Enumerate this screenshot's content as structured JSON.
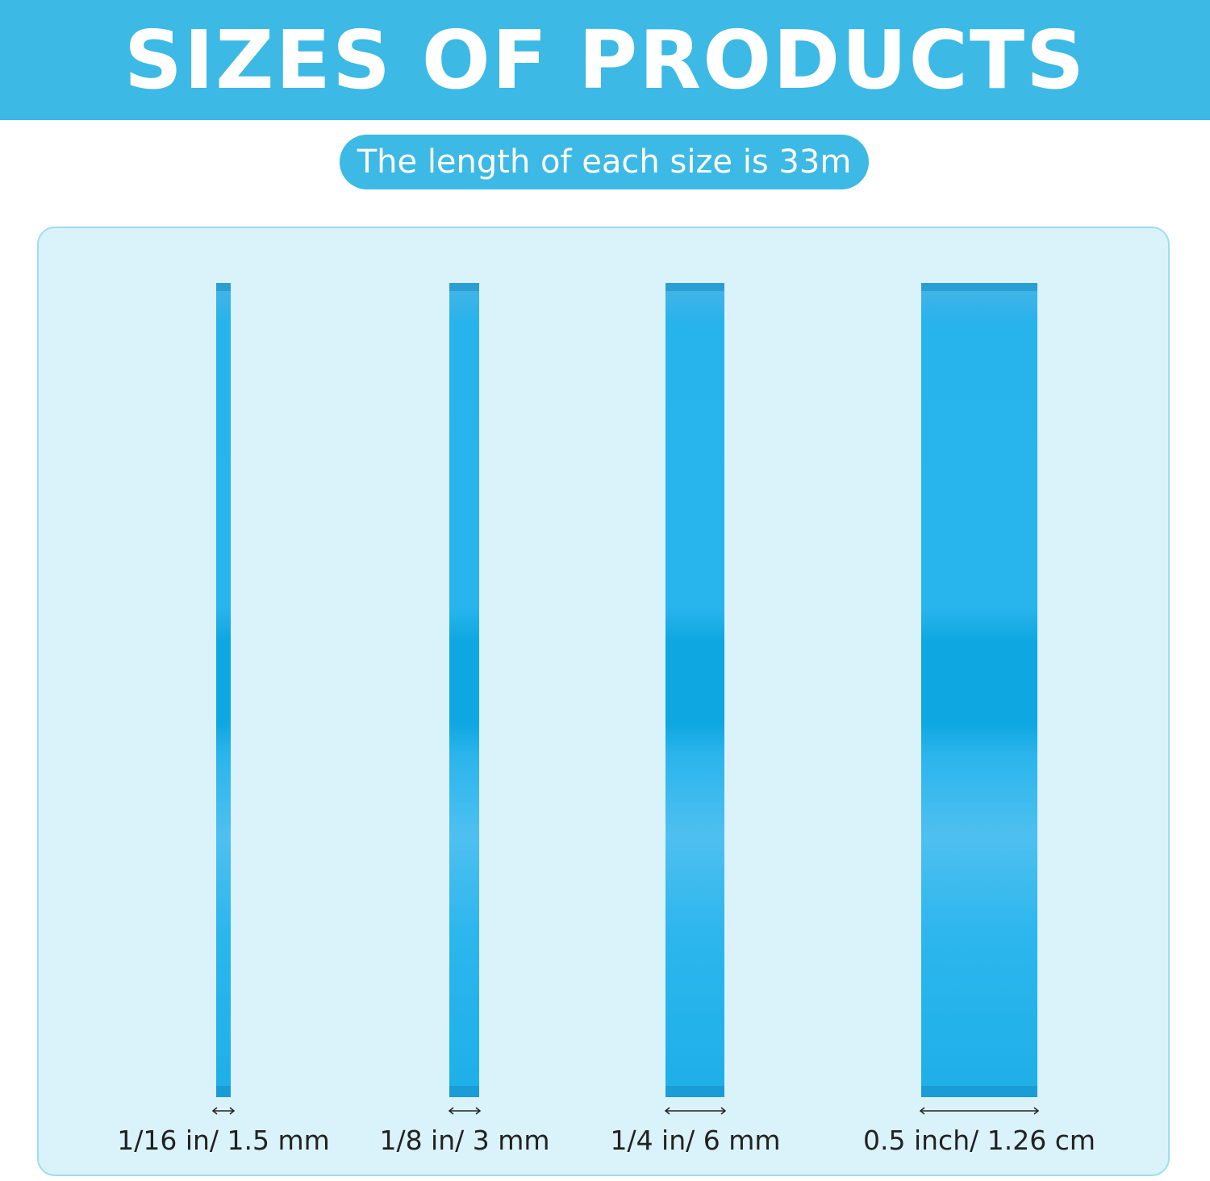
{
  "banner": {
    "title": "SIZES OF PRODUCTS",
    "color": "#3cb9e4"
  },
  "subtitle": "The length of each size is 33m",
  "tapes": [
    {
      "label": "1/16 in/ 1.5 mm"
    },
    {
      "label": "1/8 in/ 3 mm"
    },
    {
      "label": "1/4 in/ 6 mm"
    },
    {
      "label": "0.5 inch/ 1.26 cm"
    }
  ],
  "colors": {
    "tape": "#28b4ec",
    "panel": "#daf2f9"
  }
}
